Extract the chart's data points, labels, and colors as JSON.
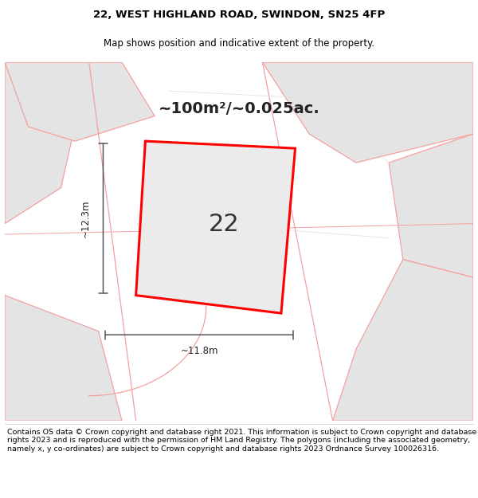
{
  "title_line1": "22, WEST HIGHLAND ROAD, SWINDON, SN25 4FP",
  "title_line2": "Map shows position and indicative extent of the property.",
  "area_text": "~100m²/~0.025ac.",
  "plot_number": "22",
  "dim_height": "~12.3m",
  "dim_width": "~11.8m",
  "footer_text": "Contains OS data © Crown copyright and database right 2021. This information is subject to Crown copyright and database rights 2023 and is reproduced with the permission of HM Land Registry. The polygons (including the associated geometry, namely x, y co-ordinates) are subject to Crown copyright and database rights 2023 Ordnance Survey 100026316.",
  "map_bg": "#f2f2f2",
  "plot_fill": "#ebebeb",
  "plot_edge_color": "#ff0000",
  "road_fill": "#e4e4e4",
  "road_line_color": "#f5a0a0",
  "dim_line_color": "#555555",
  "title_fontsize": 9.5,
  "subtitle_fontsize": 8.5,
  "area_fontsize": 14,
  "number_fontsize": 22,
  "footer_fontsize": 6.8
}
